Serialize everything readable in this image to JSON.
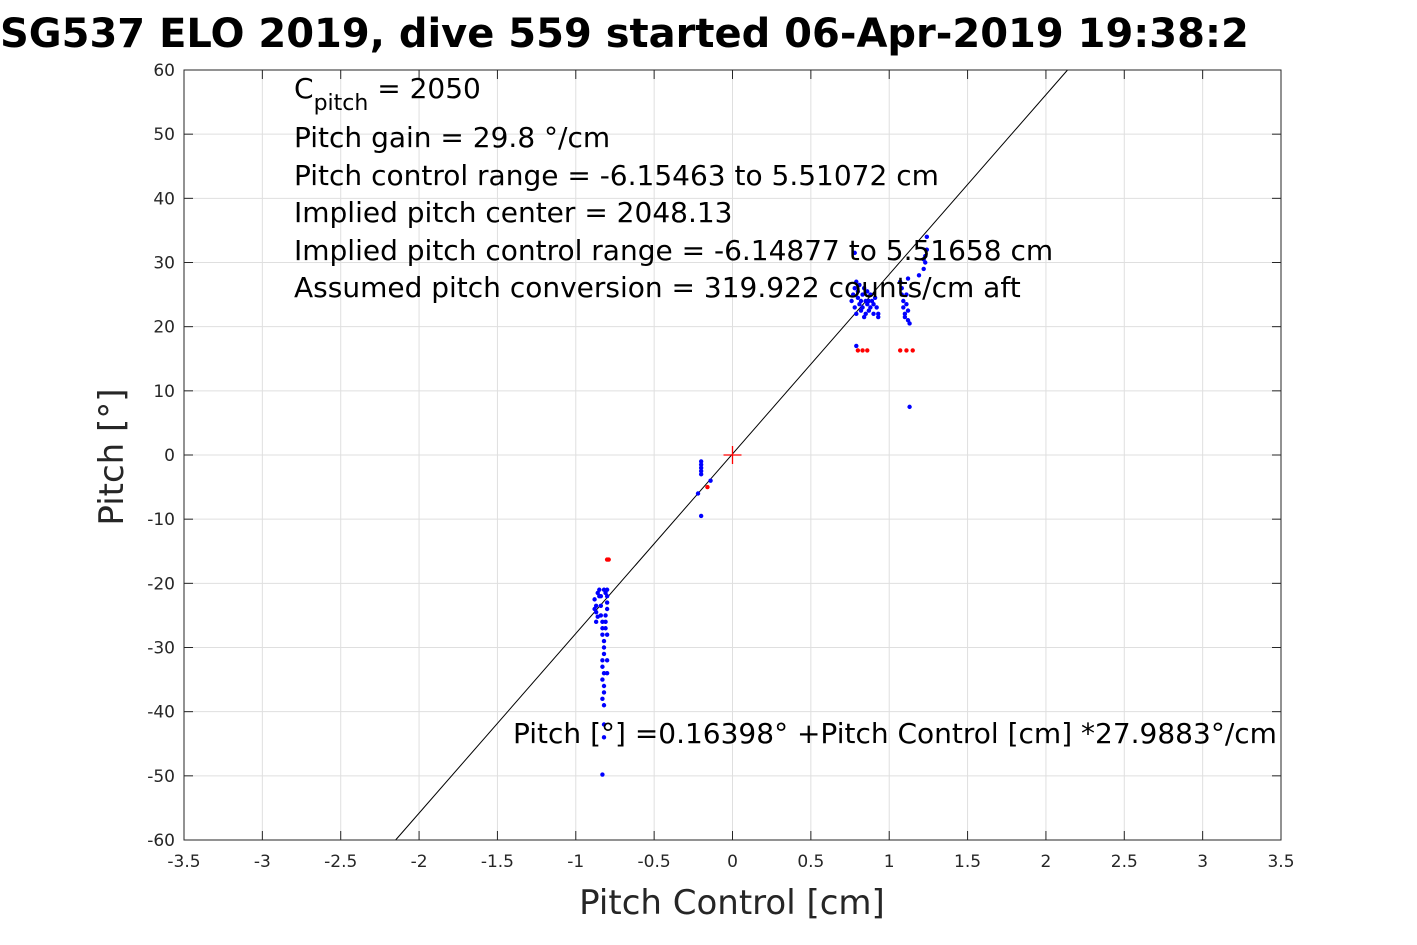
{
  "chart_data": {
    "type": "scatter",
    "title": "SG537 ELO 2019, dive 559 started 06-Apr-2019 19:38:2",
    "xlabel": "Pitch Control [cm]",
    "ylabel": "Pitch [°]",
    "xlim": [
      -3.5,
      3.5
    ],
    "ylim": [
      -60,
      60
    ],
    "xticks": [
      -3.5,
      -3,
      -2.5,
      -2,
      -1.5,
      -1,
      -0.5,
      0,
      0.5,
      1,
      1.5,
      2,
      2.5,
      3,
      3.5
    ],
    "yticks": [
      -60,
      -50,
      -40,
      -30,
      -20,
      -10,
      0,
      10,
      20,
      30,
      40,
      50,
      60
    ],
    "grid": true,
    "annotations": {
      "cpitch_symbol": "C",
      "cpitch_sub": "pitch",
      "cpitch_value": " = 2050",
      "gain": "Pitch gain = 29.8 °/cm",
      "control_range": "Pitch control range = -6.15463 to 5.51072 cm",
      "implied_center": "Implied pitch center = 2048.13",
      "implied_range": "Implied pitch control range = -6.14877 to 5.51658 cm",
      "conversion": "Assumed pitch conversion = 319.922 counts/cm aft",
      "fit_equation": "Pitch [°] =0.16398° +Pitch Control [cm] *27.9883°/cm"
    },
    "fit_line": {
      "intercept": 0.16398,
      "slope": 27.9883,
      "color": "#000000"
    },
    "center_marker": {
      "x": 0,
      "y": 0,
      "color": "#ff0000"
    },
    "series": [
      {
        "color": "#0000ff",
        "points": [
          [
            -0.88,
            -22.5
          ],
          [
            -0.87,
            -23.5
          ],
          [
            -0.87,
            -24.5
          ],
          [
            -0.86,
            -25.2
          ],
          [
            -0.88,
            -24
          ],
          [
            -0.85,
            -22
          ],
          [
            -0.86,
            -21.5
          ],
          [
            -0.84,
            -22
          ],
          [
            -0.84,
            -23.5
          ],
          [
            -0.84,
            -25
          ],
          [
            -0.83,
            -26
          ],
          [
            -0.83,
            -27
          ],
          [
            -0.83,
            -28
          ],
          [
            -0.82,
            -29
          ],
          [
            -0.82,
            -30
          ],
          [
            -0.82,
            -31
          ],
          [
            -0.83,
            -32
          ],
          [
            -0.83,
            -33
          ],
          [
            -0.82,
            -34
          ],
          [
            -0.83,
            -35
          ],
          [
            -0.82,
            -36
          ],
          [
            -0.82,
            -37
          ],
          [
            -0.83,
            -38
          ],
          [
            -0.82,
            -39
          ],
          [
            -0.82,
            -42
          ],
          [
            -0.82,
            -44
          ],
          [
            -0.83,
            -49.8
          ],
          [
            -0.81,
            -21.5
          ],
          [
            -0.8,
            -21
          ],
          [
            -0.8,
            -22
          ],
          [
            -0.8,
            -23
          ],
          [
            -0.8,
            -24
          ],
          [
            -0.81,
            -25
          ],
          [
            -0.81,
            -26
          ],
          [
            -0.81,
            -27
          ],
          [
            -0.8,
            -28
          ],
          [
            -0.8,
            -32
          ],
          [
            -0.8,
            -34
          ],
          [
            -0.82,
            -21
          ],
          [
            -0.85,
            -21
          ],
          [
            -0.87,
            -26
          ],
          [
            -0.2,
            -1
          ],
          [
            -0.2,
            -1.5
          ],
          [
            -0.2,
            -2
          ],
          [
            -0.2,
            -2.5
          ],
          [
            -0.2,
            -3
          ],
          [
            -0.2,
            -9.5
          ],
          [
            -0.22,
            -6
          ],
          [
            -0.14,
            -4
          ],
          [
            0.76,
            24
          ],
          [
            0.77,
            25
          ],
          [
            0.78,
            26
          ],
          [
            0.78,
            23
          ],
          [
            0.79,
            27
          ],
          [
            0.79,
            22
          ],
          [
            0.8,
            24.5
          ],
          [
            0.8,
            25.5
          ],
          [
            0.81,
            23.5
          ],
          [
            0.81,
            26.5
          ],
          [
            0.82,
            24
          ],
          [
            0.82,
            22.5
          ],
          [
            0.83,
            25
          ],
          [
            0.83,
            23
          ],
          [
            0.84,
            26
          ],
          [
            0.84,
            21.5
          ],
          [
            0.85,
            24
          ],
          [
            0.85,
            22
          ],
          [
            0.86,
            23.5
          ],
          [
            0.86,
            25.5
          ],
          [
            0.87,
            24
          ],
          [
            0.87,
            22.5
          ],
          [
            0.88,
            23
          ],
          [
            0.88,
            25
          ],
          [
            0.89,
            24
          ],
          [
            0.9,
            23.5
          ],
          [
            0.9,
            22
          ],
          [
            0.91,
            24.5
          ],
          [
            0.92,
            23
          ],
          [
            0.93,
            22
          ],
          [
            0.93,
            21.5
          ],
          [
            0.79,
            17
          ],
          [
            0.78,
            31.5
          ],
          [
            1.07,
            27
          ],
          [
            1.08,
            26
          ],
          [
            1.08,
            25
          ],
          [
            1.09,
            24
          ],
          [
            1.09,
            23
          ],
          [
            1.1,
            22
          ],
          [
            1.1,
            21.5
          ],
          [
            1.11,
            23.5
          ],
          [
            1.11,
            25
          ],
          [
            1.12,
            22.5
          ],
          [
            1.12,
            21
          ],
          [
            1.13,
            20.5
          ],
          [
            1.13,
            7.5
          ],
          [
            1.12,
            27.5
          ],
          [
            1.19,
            28
          ],
          [
            1.22,
            29
          ],
          [
            1.23,
            30
          ],
          [
            1.23,
            31
          ],
          [
            1.24,
            32
          ],
          [
            1.24,
            34
          ],
          [
            1.22,
            30.5
          ]
        ]
      },
      {
        "color": "#ff0000",
        "points": [
          [
            -0.79,
            -16.3
          ],
          [
            -0.8,
            -16.3
          ],
          [
            -0.16,
            -5
          ],
          [
            0.8,
            16.3
          ],
          [
            0.83,
            16.3
          ],
          [
            0.86,
            16.3
          ],
          [
            1.07,
            16.3
          ],
          [
            1.11,
            16.3
          ],
          [
            1.15,
            16.3
          ]
        ]
      }
    ]
  }
}
